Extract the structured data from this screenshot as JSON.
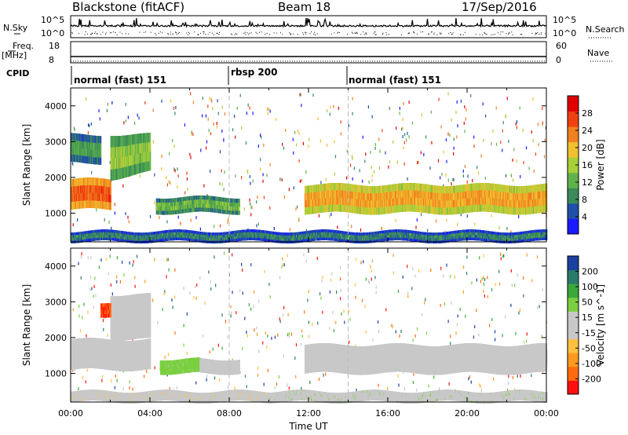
{
  "header": {
    "radar": "Blackstone (fitACF)",
    "beam": "Beam 18",
    "date": "17/Sep/2016"
  },
  "summary_panels": {
    "nsky_label": "N.Sky",
    "nsky_ticks": [
      "10^5",
      "10^0"
    ],
    "nsearch_label": "N.Search",
    "nsearch_ticks": [
      "10^5",
      "10^0"
    ],
    "freq_label": "Freq.",
    "freq_unit": "[MHz]",
    "freq_ticks": [
      "18",
      "8"
    ],
    "nave_label": "Nave",
    "nave_ticks": [
      "60",
      "0"
    ],
    "cpid_label": "CPID"
  },
  "modes": [
    {
      "label": "normal (fast) 151",
      "start_hour": 0,
      "end_hour": 8
    },
    {
      "label": "rbsp 200",
      "start_hour": 8,
      "end_hour": 14
    },
    {
      "label": "normal (fast) 151",
      "start_hour": 14,
      "end_hour": 24
    }
  ],
  "colors": {
    "power_scale": [
      "#1a1aff",
      "#1f4fa8",
      "#3a8a5a",
      "#5fb34a",
      "#a8cf3a",
      "#f0c030",
      "#f08020",
      "#f04010",
      "#e00000"
    ],
    "velocity_scale": [
      "#ff1010",
      "#ff6a10",
      "#ff9a20",
      "#ffc040",
      "#c8c8c8",
      "#c8c8c8",
      "#7ad040",
      "#3aa83a",
      "#2a7a6a",
      "#1a40a0"
    ]
  },
  "chart_data": [
    {
      "type": "heatmap",
      "panel": "power",
      "xlabel": "",
      "ylabel": "Slant Range [km]",
      "xlim": [
        0,
        24
      ],
      "ylim": [
        200,
        4500
      ],
      "yticks": [
        1000,
        2000,
        3000,
        4000
      ],
      "colorbar_label": "Power [dB]",
      "colorbar_ticks": [
        "4",
        "8",
        "12",
        "16",
        "20",
        "24",
        "28"
      ],
      "colorbar_range": [
        0,
        30
      ],
      "bands": [
        {
          "t0": 0.0,
          "t1": 2.0,
          "r0": 1100,
          "r1": 1950,
          "level": 22
        },
        {
          "t0": 2.0,
          "t1": 4.0,
          "r0": 1950,
          "r1": 3200,
          "level": 12
        },
        {
          "t0": 0.0,
          "t1": 1.5,
          "r0": 2400,
          "r1": 3200,
          "level": 8
        },
        {
          "t0": 4.3,
          "t1": 8.5,
          "r0": 1000,
          "r1": 1450,
          "level": 10
        },
        {
          "t0": 11.8,
          "t1": 24.0,
          "r0": 1000,
          "r1": 1800,
          "level": 18
        },
        {
          "t0": 0.0,
          "t1": 24.0,
          "r0": 200,
          "r1": 500,
          "level": 6
        }
      ]
    },
    {
      "type": "heatmap",
      "panel": "velocity",
      "xlabel": "Time UT",
      "ylabel": "Slant Range [km]",
      "xlim": [
        0,
        24
      ],
      "ylim": [
        200,
        4500
      ],
      "xticks": [
        "00:00",
        "04:00",
        "08:00",
        "12:00",
        "16:00",
        "20:00",
        "00:00"
      ],
      "yticks": [
        1000,
        2000,
        3000,
        4000
      ],
      "colorbar_label": "Velocity [m s^-1]",
      "colorbar_ticks": [
        "-200",
        "-100",
        "-50",
        "-15",
        "15",
        "50",
        "100",
        "200"
      ],
      "colorbar_range": [
        -250,
        250
      ],
      "bands": [
        {
          "t0": 0.0,
          "t1": 4.0,
          "r0": 1100,
          "r1": 1950,
          "level": 0
        },
        {
          "t0": 2.0,
          "t1": 4.0,
          "r0": 1950,
          "r1": 3200,
          "level": 0
        },
        {
          "t0": 1.5,
          "t1": 2.0,
          "r0": 2600,
          "r1": 3000,
          "level": -200
        },
        {
          "t0": 4.5,
          "t1": 6.5,
          "r0": 1000,
          "r1": 1400,
          "level": 60
        },
        {
          "t0": 6.5,
          "t1": 8.5,
          "r0": 1000,
          "r1": 1400,
          "level": 0
        },
        {
          "t0": 11.8,
          "t1": 24.0,
          "r0": 1000,
          "r1": 1800,
          "level": 0
        },
        {
          "t0": 0.0,
          "t1": 10.0,
          "r0": 200,
          "r1": 500,
          "level": -40
        },
        {
          "t0": 10.0,
          "t1": 24.0,
          "r0": 200,
          "r1": 500,
          "level": 40
        }
      ]
    }
  ]
}
